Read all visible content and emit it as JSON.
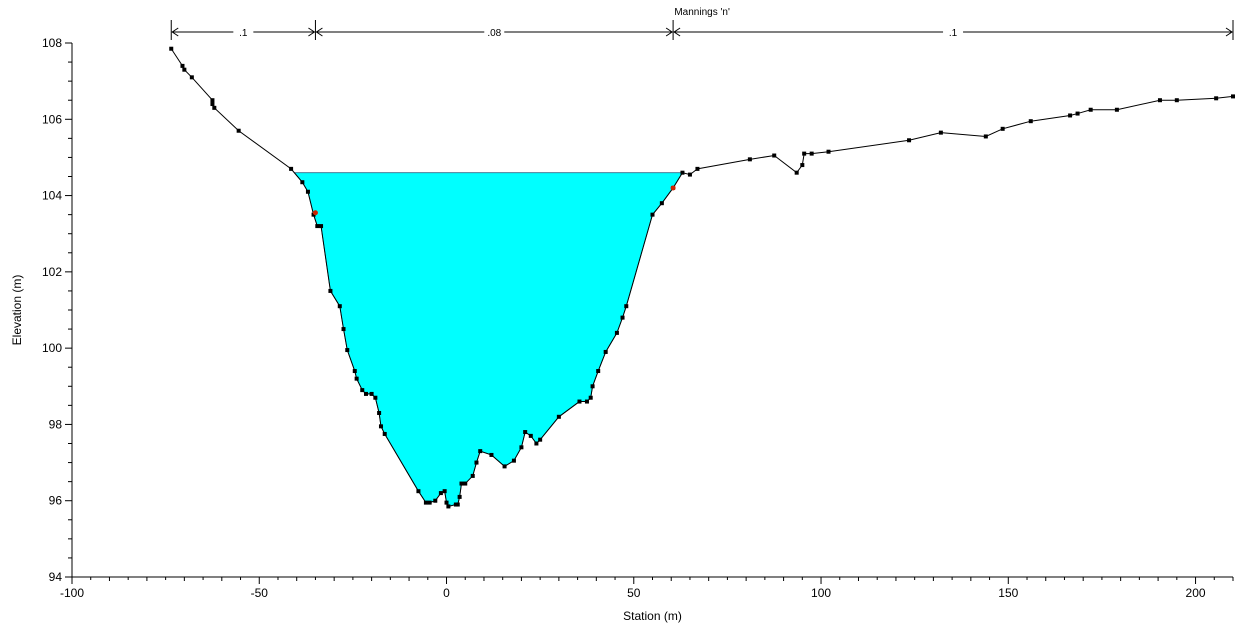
{
  "chart_data": {
    "type": "area",
    "xlabel": "Station (m)",
    "ylabel": "Elevation (m)",
    "xlim": [
      -100,
      210
    ],
    "ylim": [
      94,
      108
    ],
    "x_ticks": [
      -100,
      -50,
      0,
      50,
      100,
      150,
      200
    ],
    "y_ticks": [
      94,
      96,
      98,
      100,
      102,
      104,
      106,
      108
    ],
    "water_surface_elevation": 104.6,
    "colors": {
      "water": "#00ffff",
      "ground": "#000000",
      "bank_marker": "#cc2200",
      "bar": "#000000"
    },
    "mannings": {
      "title": "Mannings 'n'",
      "breaks": [
        -73.5,
        -35,
        60.5,
        210
      ],
      "values": [
        ".1",
        ".08",
        ".1"
      ]
    },
    "bank_stations": [
      [
        -35,
        103.55
      ],
      [
        60.5,
        104.2
      ]
    ],
    "ground": [
      [
        -73.5,
        107.85
      ],
      [
        -70.5,
        107.4
      ],
      [
        -70,
        107.3
      ],
      [
        -68,
        107.1
      ],
      [
        -62.5,
        106.5
      ],
      [
        -62.5,
        106.4
      ],
      [
        -62,
        106.3
      ],
      [
        -55.5,
        105.7
      ],
      [
        -41.5,
        104.7
      ],
      [
        -38.5,
        104.35
      ],
      [
        -37,
        104.1
      ],
      [
        -35.5,
        103.5
      ],
      [
        -34.5,
        103.2
      ],
      [
        -33.5,
        103.2
      ],
      [
        -31,
        101.5
      ],
      [
        -28.5,
        101.1
      ],
      [
        -27.5,
        100.5
      ],
      [
        -26.5,
        99.95
      ],
      [
        -24.5,
        99.4
      ],
      [
        -24,
        99.2
      ],
      [
        -22.5,
        98.9
      ],
      [
        -21.5,
        98.8
      ],
      [
        -20,
        98.8
      ],
      [
        -19,
        98.7
      ],
      [
        -18,
        98.3
      ],
      [
        -17.5,
        97.95
      ],
      [
        -16.5,
        97.75
      ],
      [
        -7.5,
        96.25
      ],
      [
        -5.5,
        95.95
      ],
      [
        -4.5,
        95.95
      ],
      [
        -3,
        96
      ],
      [
        -1.5,
        96.2
      ],
      [
        -0.5,
        96.25
      ],
      [
        0,
        95.95
      ],
      [
        0.5,
        95.85
      ],
      [
        2.5,
        95.9
      ],
      [
        3,
        95.9
      ],
      [
        3.5,
        96.1
      ],
      [
        4,
        96.45
      ],
      [
        5,
        96.45
      ],
      [
        7,
        96.65
      ],
      [
        8,
        97
      ],
      [
        9,
        97.3
      ],
      [
        12,
        97.2
      ],
      [
        15.5,
        96.9
      ],
      [
        18,
        97.05
      ],
      [
        20,
        97.4
      ],
      [
        21,
        97.8
      ],
      [
        22.5,
        97.7
      ],
      [
        24,
        97.5
      ],
      [
        25,
        97.6
      ],
      [
        30,
        98.2
      ],
      [
        35.5,
        98.6
      ],
      [
        37.5,
        98.6
      ],
      [
        38.5,
        98.7
      ],
      [
        39,
        99
      ],
      [
        40.5,
        99.4
      ],
      [
        42.5,
        99.9
      ],
      [
        45.5,
        100.4
      ],
      [
        47,
        100.8
      ],
      [
        48,
        101.1
      ],
      [
        55,
        103.5
      ],
      [
        57.5,
        103.8
      ],
      [
        60.5,
        104.2
      ],
      [
        63,
        104.6
      ],
      [
        65,
        104.55
      ],
      [
        67,
        104.7
      ],
      [
        81,
        104.95
      ],
      [
        87.5,
        105.05
      ],
      [
        93.5,
        104.6
      ],
      [
        95,
        104.8
      ],
      [
        95.5,
        105.1
      ],
      [
        97.5,
        105.1
      ],
      [
        102,
        105.15
      ],
      [
        123.5,
        105.45
      ],
      [
        132,
        105.65
      ],
      [
        144,
        105.55
      ],
      [
        148.5,
        105.75
      ],
      [
        156,
        105.95
      ],
      [
        166.5,
        106.1
      ],
      [
        168.5,
        106.15
      ],
      [
        172,
        106.25
      ],
      [
        179,
        106.25
      ],
      [
        190.5,
        106.5
      ],
      [
        195,
        106.5
      ],
      [
        205.5,
        106.55
      ],
      [
        210,
        106.6
      ]
    ]
  }
}
